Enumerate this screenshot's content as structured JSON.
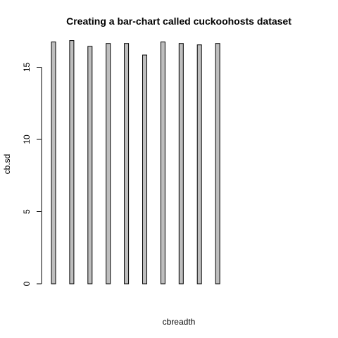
{
  "chart_data": {
    "type": "bar",
    "title": "Creating a bar-chart called cuckoohosts dataset",
    "xlabel": "cbreadth",
    "ylabel": "cb.sd",
    "values": [
      16.75,
      16.85,
      16.45,
      16.65,
      16.65,
      15.85,
      16.75,
      16.65,
      16.55,
      16.65
    ],
    "ylim": [
      0,
      17.4
    ],
    "yticks": [
      0,
      5,
      10,
      15
    ],
    "bar_fill": "#bebebe",
    "bar_stroke": "#000000",
    "grid": false,
    "legend": "none"
  }
}
